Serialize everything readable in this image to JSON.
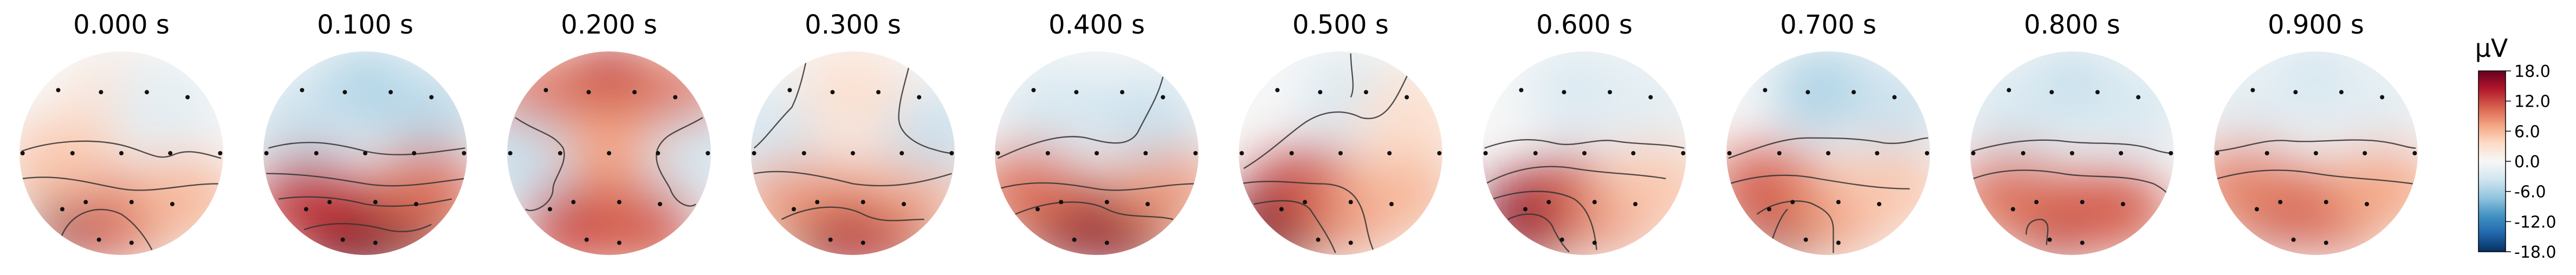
{
  "chart_data": {
    "type": "heatmap",
    "subtype": "eeg-topomap-series",
    "colorbar": {
      "label": "µV",
      "vmin": -18.0,
      "vmax": 18.0,
      "ticks": [
        "18.0",
        "12.0",
        "6.0",
        "0.0",
        "-6.0",
        "-12.0",
        "-18.0"
      ],
      "colormap": "RdBu_r",
      "colors": [
        "#053061",
        "#2166ac",
        "#4393c3",
        "#92c5de",
        "#d1e5f0",
        "#f7f7f7",
        "#fddbc7",
        "#f4a582",
        "#d6604d",
        "#b2182b",
        "#67001f"
      ]
    },
    "panels": [
      {
        "title": "0.000 s",
        "blobs": [
          {
            "x": 0.0,
            "y": 0.5,
            "v": 3
          },
          {
            "x": -0.35,
            "y": -0.6,
            "v": 16
          },
          {
            "x": 0.1,
            "y": -0.6,
            "v": 11
          },
          {
            "x": 0.6,
            "y": -0.45,
            "v": 6
          },
          {
            "x": -0.6,
            "y": -0.1,
            "v": 5
          },
          {
            "x": 0.4,
            "y": 0.45,
            "v": -2
          }
        ],
        "contours": [
          "M -0.98 0.02 C -0.7 0.12 -0.3 0.15 0.0 0.08 C 0.25 0.02 0.35 -0.08 0.5 -0.02 C 0.65 0.05 0.8 0.0 0.98 -0.05",
          "M -0.97 -0.25 C -0.6 -0.2 -0.3 -0.3 0.0 -0.35 C 0.3 -0.4 0.6 -0.3 0.95 -0.3",
          "M -0.6 -0.85 C -0.5 -0.55 -0.2 -0.5 0.0 -0.6 C 0.15 -0.7 0.25 -0.85 0.3 -0.95"
        ]
      },
      {
        "title": "0.100 s",
        "blobs": [
          {
            "x": 0.0,
            "y": 0.6,
            "v": -6
          },
          {
            "x": 0.6,
            "y": 0.4,
            "v": -5
          },
          {
            "x": -0.6,
            "y": 0.3,
            "v": -4
          },
          {
            "x": -0.2,
            "y": -0.75,
            "v": 18
          },
          {
            "x": 0.35,
            "y": -0.7,
            "v": 17
          },
          {
            "x": -0.55,
            "y": -0.45,
            "v": 13
          },
          {
            "x": 0.6,
            "y": -0.35,
            "v": 10
          }
        ],
        "contours": [
          "M -0.95 0.05 C -0.6 0.15 -0.3 0.1 0.0 0.02 C 0.3 -0.05 0.6 0.0 0.98 0.05",
          "M -0.97 -0.2 C -0.6 -0.2 -0.3 -0.25 0.0 -0.3 C 0.3 -0.35 0.6 -0.3 0.97 -0.25",
          "M -0.85 -0.45 C -0.5 -0.4 -0.2 -0.45 0.0 -0.5 C 0.3 -0.55 0.6 -0.5 0.85 -0.45",
          "M -0.6 -0.75 C -0.3 -0.65 0.0 -0.7 0.2 -0.75 C 0.4 -0.8 0.55 -0.75 0.65 -0.7"
        ]
      },
      {
        "title": "0.200 s",
        "blobs": [
          {
            "x": 0.0,
            "y": 0.65,
            "v": 13
          },
          {
            "x": -0.65,
            "y": 0.5,
            "v": 10
          },
          {
            "x": 0.65,
            "y": 0.5,
            "v": 10
          },
          {
            "x": 0.0,
            "y": 0.0,
            "v": 7
          },
          {
            "x": -0.3,
            "y": -0.7,
            "v": 12
          },
          {
            "x": 0.35,
            "y": -0.7,
            "v": 11
          },
          {
            "x": -0.9,
            "y": -0.05,
            "v": -4
          },
          {
            "x": 0.9,
            "y": -0.05,
            "v": -3
          }
        ],
        "contours": [
          "M -0.92 0.35 C -0.7 0.2 -0.55 0.2 -0.45 0.05 C -0.4 -0.1 -0.55 -0.25 -0.55 -0.35 C -0.55 -0.5 -0.75 -0.6 -0.82 -0.55",
          "M 0.92 0.35 C 0.7 0.22 0.55 0.2 0.48 0.05 C 0.42 -0.1 0.55 -0.25 0.6 -0.35 C 0.65 -0.5 0.8 -0.55 0.85 -0.5"
        ]
      },
      {
        "title": "0.300 s",
        "blobs": [
          {
            "x": -0.2,
            "y": -0.7,
            "v": 16
          },
          {
            "x": 0.3,
            "y": -0.7,
            "v": 14
          },
          {
            "x": -0.6,
            "y": -0.35,
            "v": 8
          },
          {
            "x": 0.6,
            "y": -0.3,
            "v": 7
          },
          {
            "x": -0.85,
            "y": 0.25,
            "v": -3
          },
          {
            "x": 0.8,
            "y": 0.2,
            "v": -4
          },
          {
            "x": 0.0,
            "y": 0.6,
            "v": 3
          }
        ],
        "contours": [
          "M -0.45 0.95 C -0.5 0.7 -0.55 0.55 -0.6 0.45 C -0.75 0.3 -0.85 0.15 -0.97 0.05",
          "M 0.55 0.85 C 0.5 0.65 0.45 0.5 0.45 0.35 C 0.45 0.2 0.6 0.1 0.75 0.05 C 0.85 0.02 0.92 0.0 0.98 0.0",
          "M -0.97 -0.2 C -0.7 -0.15 -0.4 -0.2 0.0 -0.3 C 0.35 -0.35 0.65 -0.3 0.97 -0.2",
          "M -0.7 -0.65 C -0.4 -0.5 -0.1 -0.5 0.1 -0.6 C 0.3 -0.7 0.5 -0.65 0.7 -0.65"
        ]
      },
      {
        "title": "0.400 s",
        "blobs": [
          {
            "x": -0.3,
            "y": -0.65,
            "v": 17
          },
          {
            "x": 0.25,
            "y": -0.7,
            "v": 16
          },
          {
            "x": -0.65,
            "y": -0.35,
            "v": 10
          },
          {
            "x": 0.65,
            "y": -0.3,
            "v": 8
          },
          {
            "x": -0.4,
            "y": 0.45,
            "v": -3
          },
          {
            "x": 0.5,
            "y": 0.35,
            "v": -4
          }
        ],
        "contours": [
          "M -0.97 -0.05 C -0.65 0.1 -0.35 0.2 -0.1 0.15 C 0.1 0.1 0.3 0.05 0.4 0.2 C 0.5 0.4 0.6 0.55 0.65 0.75",
          "M -0.97 -0.35 C -0.6 -0.25 -0.3 -0.3 0.0 -0.35 C 0.3 -0.4 0.65 -0.3 0.97 -0.3",
          "M -0.8 -0.6 C -0.45 -0.45 -0.1 -0.45 0.1 -0.55 C 0.3 -0.65 0.55 -0.6 0.75 -0.65"
        ]
      },
      {
        "title": "0.500 s",
        "blobs": [
          {
            "x": -0.55,
            "y": -0.65,
            "v": 18
          },
          {
            "x": -0.3,
            "y": -0.35,
            "v": 13
          },
          {
            "x": 0.15,
            "y": -0.55,
            "v": 9
          },
          {
            "x": 0.6,
            "y": -0.4,
            "v": 6
          },
          {
            "x": 0.15,
            "y": 0.55,
            "v": -3
          },
          {
            "x": 0.7,
            "y": 0.4,
            "v": 3
          }
        ],
        "contours": [
          "M -0.95 -0.15 C -0.7 0.0 -0.5 0.2 -0.35 0.3 C -0.2 0.4 0.0 0.45 0.2 0.35 C 0.4 0.3 0.5 0.45 0.6 0.65 C 0.65 0.75 0.7 0.85 0.7 0.9",
          "M 0.1 0.98 C 0.1 0.8 0.15 0.65 0.1 0.55",
          "M -0.98 -0.3 C -0.7 -0.25 -0.4 -0.3 -0.2 -0.3 C 0.1 -0.3 0.2 -0.45 0.25 -0.7 C 0.28 -0.85 0.3 -0.9 0.32 -0.95",
          "M -0.85 -0.5 C -0.6 -0.45 -0.4 -0.45 -0.3 -0.55 C -0.2 -0.7 -0.1 -0.85 -0.05 -0.98"
        ]
      },
      {
        "title": "0.600 s",
        "blobs": [
          {
            "x": -0.45,
            "y": -0.6,
            "v": 17
          },
          {
            "x": -0.15,
            "y": -0.45,
            "v": 14
          },
          {
            "x": 0.3,
            "y": -0.55,
            "v": 9
          },
          {
            "x": 0.7,
            "y": -0.35,
            "v": 5
          },
          {
            "x": 0.0,
            "y": 0.6,
            "v": -3
          },
          {
            "x": 0.6,
            "y": 0.5,
            "v": -2
          }
        ],
        "contours": [
          "M -0.98 0.05 C -0.7 0.15 -0.5 0.15 -0.3 0.1 C -0.1 0.05 0.1 0.15 0.3 0.12 C 0.55 0.08 0.75 0.1 0.98 0.05",
          "M -0.97 -0.3 C -0.7 -0.15 -0.4 -0.1 -0.1 -0.15 C 0.2 -0.2 0.5 -0.2 0.8 -0.25",
          "M -0.9 -0.45 C -0.6 -0.35 -0.3 -0.35 -0.1 -0.45 C 0.05 -0.55 0.1 -0.75 0.12 -0.95",
          "M -0.75 -0.65 C -0.55 -0.55 -0.35 -0.6 -0.3 -0.75 C -0.25 -0.85 -0.2 -0.92 -0.15 -0.97"
        ]
      },
      {
        "title": "0.700 s",
        "blobs": [
          {
            "x": -0.35,
            "y": -0.6,
            "v": 17
          },
          {
            "x": -0.6,
            "y": -0.35,
            "v": 11
          },
          {
            "x": 0.15,
            "y": -0.55,
            "v": 8
          },
          {
            "x": 0.6,
            "y": -0.35,
            "v": 5
          },
          {
            "x": 0.0,
            "y": 0.6,
            "v": -6
          },
          {
            "x": 0.65,
            "y": 0.45,
            "v": -4
          }
        ],
        "contours": [
          "M -0.98 -0.05 C -0.7 0.05 -0.45 0.15 -0.2 0.15 C 0.05 0.15 0.3 0.15 0.55 0.1 C 0.75 0.08 0.9 0.15 0.98 0.15",
          "M -0.97 -0.3 C -0.65 -0.2 -0.35 -0.2 -0.1 -0.25 C 0.2 -0.3 0.5 -0.35 0.8 -0.35",
          "M -0.7 -0.6 C -0.5 -0.45 -0.25 -0.45 -0.15 -0.5 C -0.05 -0.55 0.05 -0.6 0.05 -0.75 C 0.05 -0.85 0.05 -0.93 0.05 -0.98",
          "M -0.55 -0.85 C -0.5 -0.7 -0.45 -0.6 -0.4 -0.55"
        ]
      },
      {
        "title": "0.800 s",
        "blobs": [
          {
            "x": -0.15,
            "y": -0.6,
            "v": 15
          },
          {
            "x": 0.4,
            "y": -0.55,
            "v": 11
          },
          {
            "x": -0.6,
            "y": -0.4,
            "v": 10
          },
          {
            "x": 0.0,
            "y": 0.6,
            "v": -5
          },
          {
            "x": -0.55,
            "y": 0.4,
            "v": -3
          },
          {
            "x": 0.6,
            "y": 0.45,
            "v": -3
          }
        ],
        "contours": [
          "M -0.98 0.02 C -0.7 0.1 -0.4 0.15 -0.1 0.12 C 0.2 0.08 0.5 0.12 0.75 0.05 C 0.85 0.02 0.92 0.0 0.98 0.0",
          "M -0.97 -0.25 C -0.7 -0.15 -0.4 -0.15 -0.1 -0.2 C 0.2 -0.25 0.5 -0.2 0.8 -0.3 C 0.9 -0.35 0.95 -0.4 0.97 -0.45",
          "M -0.45 -0.8 C -0.45 -0.7 -0.4 -0.65 -0.3 -0.65 C -0.2 -0.68 -0.25 -0.8 -0.25 -0.9"
        ]
      },
      {
        "title": "0.900 s",
        "blobs": [
          {
            "x": -0.4,
            "y": -0.5,
            "v": 14
          },
          {
            "x": 0.2,
            "y": -0.55,
            "v": 11
          },
          {
            "x": 0.65,
            "y": -0.35,
            "v": 7
          },
          {
            "x": -0.7,
            "y": -0.3,
            "v": 9
          },
          {
            "x": 0.0,
            "y": 0.65,
            "v": -4
          },
          {
            "x": -0.6,
            "y": 0.5,
            "v": -2
          },
          {
            "x": 0.6,
            "y": 0.5,
            "v": -2
          }
        ],
        "contours": [
          "M -0.98 0.02 C -0.7 0.05 -0.5 0.15 -0.25 0.12 C 0.0 0.1 0.3 0.15 0.6 0.12 C 0.8 0.1 0.9 0.05 0.98 0.05",
          "M -0.97 -0.25 C -0.6 -0.15 -0.3 -0.15 0.0 -0.2 C 0.3 -0.25 0.6 -0.25 0.95 -0.3"
        ]
      }
    ],
    "sensors": [
      [
        -0.62,
        0.62
      ],
      [
        -0.2,
        0.6
      ],
      [
        0.25,
        0.6
      ],
      [
        0.65,
        0.55
      ],
      [
        -0.97,
        0.0
      ],
      [
        -0.48,
        0.0
      ],
      [
        0.0,
        0.0
      ],
      [
        0.48,
        0.0
      ],
      [
        0.97,
        0.0
      ],
      [
        -0.58,
        -0.55
      ],
      [
        -0.35,
        -0.48
      ],
      [
        0.1,
        -0.48
      ],
      [
        0.5,
        -0.5
      ],
      [
        -0.22,
        -0.85
      ],
      [
        0.1,
        -0.88
      ]
    ]
  }
}
